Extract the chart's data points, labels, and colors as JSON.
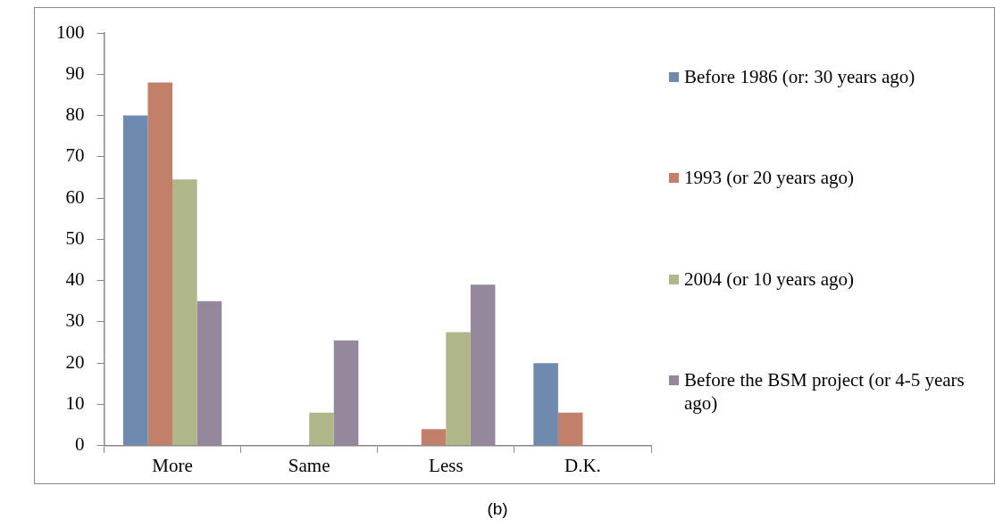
{
  "chart_data": {
    "type": "bar",
    "categories": [
      "More",
      "Same",
      "Less",
      "D.K."
    ],
    "series": [
      {
        "name": "Before 1986 (or: 30 years ago)",
        "color": "#6f8aae",
        "values": [
          80,
          0,
          0,
          20
        ]
      },
      {
        "name": "1993 (or 20 years ago)",
        "color": "#c2806a",
        "values": [
          88,
          0,
          4,
          8
        ]
      },
      {
        "name": "2004 (or 10 years ago)",
        "color": "#aeb68a",
        "values": [
          64.5,
          8,
          27.5,
          0
        ]
      },
      {
        "name": "Before the BSM project (or 4-5 years ago)",
        "color": "#95889c",
        "values": [
          35,
          25.5,
          39,
          0
        ]
      }
    ],
    "ylim": [
      0,
      100
    ],
    "yticks": [
      0,
      10,
      20,
      30,
      40,
      50,
      60,
      70,
      80,
      90,
      100
    ],
    "grid": false,
    "legend": "right",
    "annotations": [
      "(b)"
    ]
  }
}
